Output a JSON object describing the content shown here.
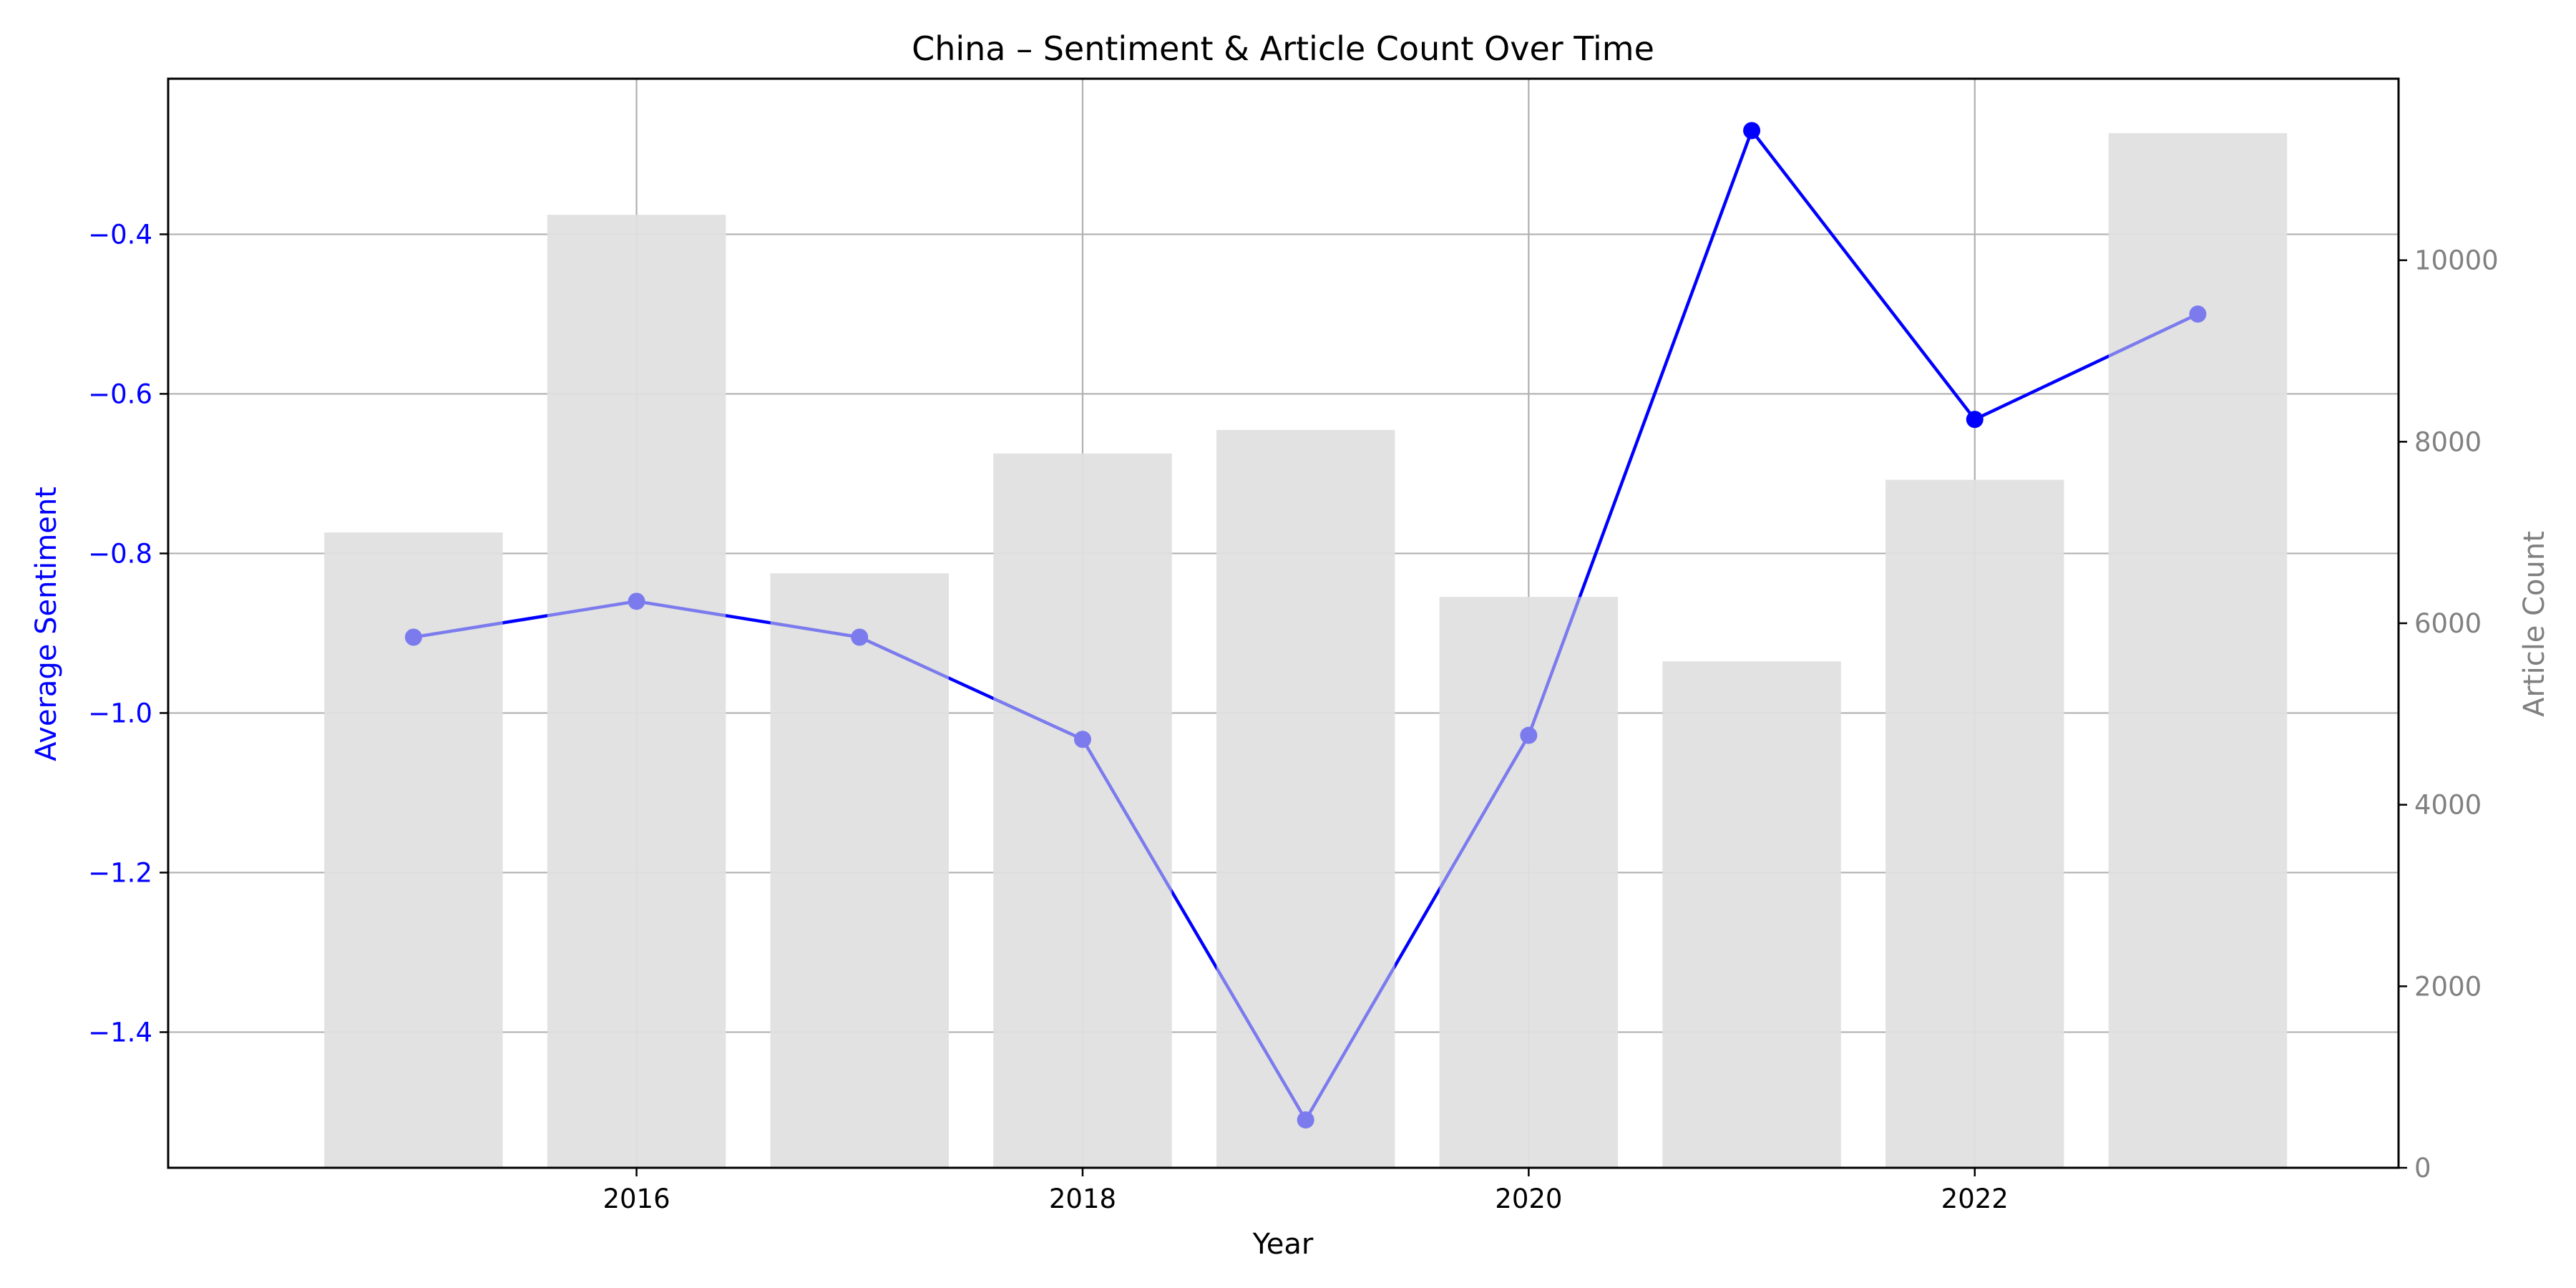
{
  "chart_data": {
    "type": "bar+line",
    "title": "China – Sentiment & Article Count Over Time",
    "xlabel": "Year",
    "ylabel_left": "Average Sentiment",
    "ylabel_right": "Article Count",
    "x": [
      2015,
      2016,
      2017,
      2018,
      2019,
      2020,
      2021,
      2022,
      2023
    ],
    "xlim": [
      2013.9,
      2023.9
    ],
    "x_ticks": [
      2016,
      2018,
      2020,
      2022
    ],
    "bar_series": {
      "name": "Article Count",
      "axis": "right",
      "values": [
        7000,
        10500,
        6550,
        7870,
        8130,
        6290,
        5580,
        7580,
        11400
      ]
    },
    "line_series": {
      "name": "Average Sentiment",
      "axis": "left",
      "values": [
        -0.905,
        -0.86,
        -0.905,
        -1.033,
        -1.51,
        -1.028,
        -0.27,
        -0.632,
        -0.5
      ]
    },
    "ylim_left": [
      -1.57,
      -0.205
    ],
    "yticks_left": [
      -1.4,
      -1.2,
      -1.0,
      -0.8,
      -0.6,
      -0.4
    ],
    "ytick_labels_left": [
      "−1.4",
      "−1.2",
      "−1.0",
      "−0.8",
      "−0.6",
      "−0.4"
    ],
    "ylim_right": [
      0,
      12000
    ],
    "yticks_right": [
      0,
      2000,
      4000,
      6000,
      8000,
      10000
    ],
    "ytick_labels_right": [
      "0",
      "2000",
      "4000",
      "6000",
      "8000",
      "10000"
    ],
    "grid": true,
    "colors": {
      "line": "#0000ff",
      "bar": "#e0e0e0",
      "left_axis": "#0000ff",
      "right_axis": "#808080",
      "grid": "#b0b0b0"
    }
  }
}
